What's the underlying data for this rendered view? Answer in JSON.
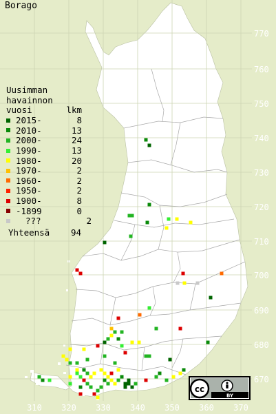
{
  "title": "Borago",
  "legend": {
    "heading_line1": "Uusimman",
    "heading_line2": "havainnon",
    "heading_line3": "vuosi",
    "count_header": "lkm",
    "rows": [
      {
        "label": "2015-",
        "count": "8",
        "color": "#006400"
      },
      {
        "label": "2010-",
        "count": "13",
        "color": "#0a8a0a"
      },
      {
        "label": "2000-",
        "count": "24",
        "color": "#22b422"
      },
      {
        "label": "1990-",
        "count": "13",
        "color": "#33ee33"
      },
      {
        "label": "1980-",
        "count": "20",
        "color": "#ffff00"
      },
      {
        "label": "1970-",
        "count": "2",
        "color": "#ffc000"
      },
      {
        "label": "1960-",
        "count": "2",
        "color": "#ff6a00"
      },
      {
        "label": "1950-",
        "count": "2",
        "color": "#ff2200"
      },
      {
        "label": "1900-",
        "count": "8",
        "color": "#dd0000"
      },
      {
        "label": "-1899",
        "count": "0",
        "color": "#880000"
      },
      {
        "label": "???",
        "count": "2",
        "color": "#c8c8c8"
      }
    ],
    "total_label": "Yhteensä",
    "total_count": "94"
  },
  "axis": {
    "northing_labels": [
      "770",
      "760",
      "750",
      "740",
      "730",
      "720",
      "710",
      "700",
      "690",
      "680",
      "670"
    ],
    "easting_labels": [
      "310",
      "320",
      "330",
      "340",
      "350",
      "360",
      "370"
    ]
  },
  "license_badge": {
    "cc": "cc",
    "by": "BY"
  },
  "colors": {
    "background": "#e5ecc9",
    "land": "#ffffff",
    "grid": "#ccd4b3",
    "border": "#a8a8a8",
    "axis_text": "#ffffff"
  }
}
